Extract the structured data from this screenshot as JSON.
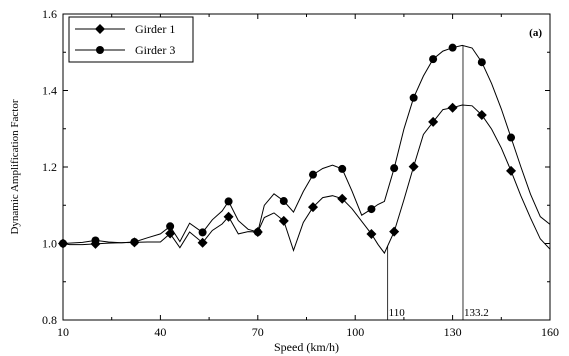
{
  "chart_data": {
    "type": "line",
    "panel_label": "(a)",
    "xlabel": "Speed (km/h)",
    "ylabel": "Dynamic Amplification Factor",
    "xlim": [
      10,
      160
    ],
    "ylim": [
      0.8,
      1.6
    ],
    "x_ticks": [
      10,
      40,
      70,
      100,
      130,
      160
    ],
    "y_ticks": [
      0.8,
      1.0,
      1.2,
      1.4,
      1.6
    ],
    "annotations": [
      {
        "x": 110,
        "label": "110"
      },
      {
        "x": 133.2,
        "label": "133.2"
      }
    ],
    "legend_position": "top-left",
    "series": [
      {
        "name": "Girder 1",
        "marker": "diamond",
        "x": [
          10,
          12,
          16,
          20,
          24,
          28,
          32,
          36,
          40,
          43,
          46,
          49,
          53,
          56,
          59,
          61,
          64,
          67,
          70,
          72,
          75,
          78,
          81,
          84,
          87,
          90,
          93,
          96,
          99,
          102,
          105,
          107,
          109,
          112,
          115,
          118,
          121,
          124,
          127,
          130,
          133,
          136,
          139,
          142,
          145,
          148,
          151,
          154,
          157,
          160
        ],
        "y": [
          1.0,
          0.997,
          0.997,
          0.999,
          1.001,
          1.002,
          1.003,
          1.004,
          1.004,
          1.026,
          0.989,
          1.03,
          1.002,
          1.034,
          1.051,
          1.07,
          1.025,
          1.031,
          1.03,
          1.068,
          1.08,
          1.059,
          0.982,
          1.055,
          1.095,
          1.12,
          1.125,
          1.117,
          1.091,
          1.058,
          1.025,
          0.998,
          0.975,
          1.031,
          1.114,
          1.201,
          1.285,
          1.318,
          1.35,
          1.355,
          1.362,
          1.36,
          1.336,
          1.299,
          1.25,
          1.19,
          1.125,
          1.067,
          1.012,
          0.985
        ]
      },
      {
        "name": "Girder 3",
        "marker": "circle",
        "x": [
          10,
          12,
          16,
          20,
          24,
          28,
          32,
          36,
          40,
          43,
          46,
          49,
          53,
          56,
          59,
          61,
          64,
          67,
          70,
          72,
          75,
          78,
          81,
          84,
          87,
          90,
          93,
          96,
          99,
          102,
          105,
          107,
          109,
          112,
          115,
          118,
          121,
          124,
          127,
          130,
          133,
          136,
          139,
          142,
          145,
          148,
          151,
          154,
          157,
          160
        ],
        "y": [
          1.0,
          1.001,
          1.003,
          1.008,
          1.004,
          1.002,
          1.004,
          1.015,
          1.025,
          1.045,
          1.005,
          1.053,
          1.029,
          1.062,
          1.085,
          1.11,
          1.06,
          1.037,
          1.03,
          1.1,
          1.13,
          1.111,
          1.082,
          1.136,
          1.18,
          1.196,
          1.205,
          1.195,
          1.137,
          1.074,
          1.09,
          1.102,
          1.11,
          1.197,
          1.299,
          1.381,
          1.438,
          1.482,
          1.503,
          1.512,
          1.518,
          1.511,
          1.474,
          1.418,
          1.352,
          1.277,
          1.201,
          1.129,
          1.07,
          1.05
        ]
      }
    ]
  }
}
